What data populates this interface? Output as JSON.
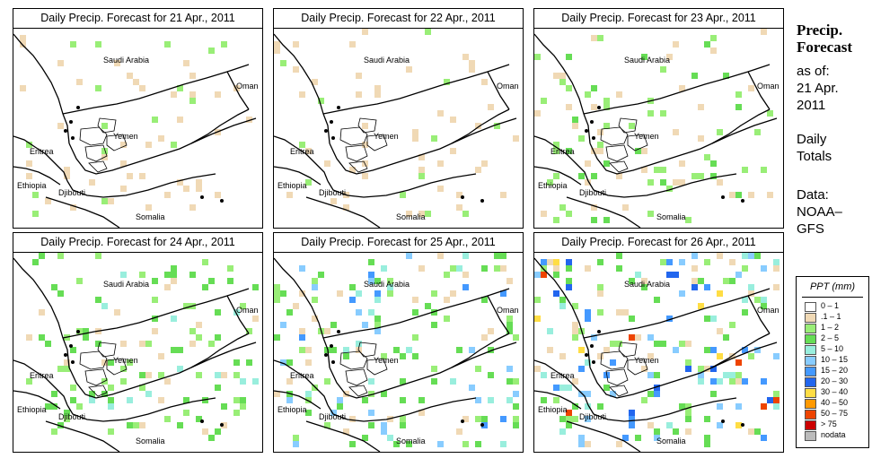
{
  "sidebar": {
    "title_line1": "Precip.",
    "title_line2": "Forecast",
    "asof_line1": "as of:",
    "asof_line2": "21 Apr.",
    "asof_line3": "2011",
    "totals_line1": "Daily",
    "totals_line2": "Totals",
    "data_line1": "Data:",
    "data_line2": "NOAA–",
    "data_line3": "GFS"
  },
  "map_labels": {
    "saudi_arabia": "Saudi Arabia",
    "oman": "Oman",
    "yemen": "Yemen",
    "eritrea": "Eritrea",
    "ethiopia": "Ethiopia",
    "djibouti": "Djibouti",
    "somalia": "Somalia"
  },
  "panels": [
    {
      "title": "Daily Precip. Forecast for  21 Apr., 2011",
      "intensity": 1,
      "seed": 11
    },
    {
      "title": "Daily Precip. Forecast for  22 Apr., 2011",
      "intensity": 1,
      "seed": 23
    },
    {
      "title": "Daily Precip. Forecast for  23 Apr., 2011",
      "intensity": 2,
      "seed": 37
    },
    {
      "title": "Daily Precip. Forecast for  24 Apr., 2011",
      "intensity": 3,
      "seed": 41
    },
    {
      "title": "Daily Precip. Forecast for  25 Apr., 2011",
      "intensity": 4,
      "seed": 53
    },
    {
      "title": "Daily Precip. Forecast for  26 Apr., 2011",
      "intensity": 5,
      "seed": 67
    }
  ],
  "legend": {
    "title": "PPT (mm)",
    "items": [
      {
        "label": "0 – 1",
        "color": "#ffffff"
      },
      {
        "label": ".1 – 1",
        "color": "#f0d9b5"
      },
      {
        "label": "1 – 2",
        "color": "#99ee77"
      },
      {
        "label": "2 – 5",
        "color": "#66dd55"
      },
      {
        "label": "5 – 10",
        "color": "#99eedd"
      },
      {
        "label": "10 – 15",
        "color": "#88ccff"
      },
      {
        "label": "15 – 20",
        "color": "#4499ff"
      },
      {
        "label": "20 – 30",
        "color": "#2266ee"
      },
      {
        "label": "30 – 40",
        "color": "#ffdd44"
      },
      {
        "label": "40 – 50",
        "color": "#ff9900"
      },
      {
        "label": "50 – 75",
        "color": "#ee4400"
      },
      {
        "label": "> 75",
        "color": "#cc0000"
      },
      {
        "label": "nodata",
        "color": "#bbbbbb"
      }
    ]
  }
}
